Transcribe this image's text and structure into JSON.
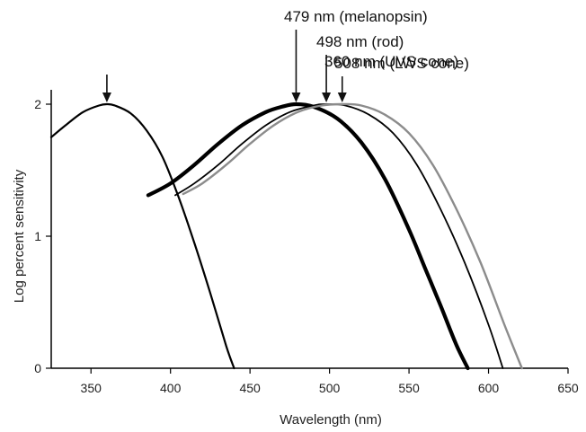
{
  "chart_data": {
    "type": "line",
    "xlabel": "Wavelength (nm)",
    "ylabel": "Log percent sensitivity",
    "xlim": [
      325,
      650
    ],
    "ylim": [
      0,
      2
    ],
    "xticks": [
      350,
      400,
      450,
      500,
      550,
      600,
      650
    ],
    "yticks": [
      0,
      1,
      2
    ],
    "grid": false,
    "series": [
      {
        "color": "#000000",
        "width": 2.2,
        "x": [
          325,
          335,
          345,
          355,
          360,
          365,
          375,
          385,
          395,
          405,
          415,
          425,
          435,
          440
        ],
        "y": [
          1.75,
          1.85,
          1.94,
          1.99,
          2.0,
          1.99,
          1.93,
          1.8,
          1.6,
          1.3,
          0.95,
          0.57,
          0.17,
          0.0
        ]
      },
      {
        "color": "#000000",
        "width": 4.2,
        "x": [
          386,
          400,
          415,
          430,
          445,
          460,
          470,
          479,
          490,
          505,
          520,
          535,
          550,
          560,
          570,
          580,
          587
        ],
        "y": [
          1.31,
          1.4,
          1.54,
          1.7,
          1.84,
          1.94,
          1.98,
          2.0,
          1.98,
          1.89,
          1.71,
          1.43,
          1.05,
          0.76,
          0.47,
          0.17,
          0.0
        ]
      },
      {
        "color": "#000000",
        "width": 1.8,
        "x": [
          403,
          415,
          430,
          445,
          460,
          475,
          490,
          498,
          510,
          525,
          540,
          555,
          570,
          585,
          600,
          609
        ],
        "y": [
          1.31,
          1.4,
          1.54,
          1.7,
          1.84,
          1.94,
          1.99,
          2.0,
          1.99,
          1.92,
          1.78,
          1.54,
          1.2,
          0.8,
          0.33,
          0.0
        ]
      },
      {
        "color": "#8c8c8c",
        "width": 2.4,
        "x": [
          408,
          420,
          435,
          450,
          465,
          480,
          495,
          508,
          520,
          535,
          550,
          565,
          580,
          595,
          610,
          621
        ],
        "y": [
          1.32,
          1.4,
          1.54,
          1.7,
          1.84,
          1.94,
          1.99,
          2.0,
          1.99,
          1.92,
          1.78,
          1.54,
          1.2,
          0.8,
          0.33,
          0.0
        ]
      }
    ],
    "annotations": [
      {
        "text": "360 nm (UVS cone)",
        "x": 360
      },
      {
        "text": "479 nm (melanopsin)",
        "x": 479
      },
      {
        "text": "498 nm (rod)",
        "x": 498
      },
      {
        "text": "508 nm (LWS cone)",
        "x": 508
      }
    ]
  }
}
